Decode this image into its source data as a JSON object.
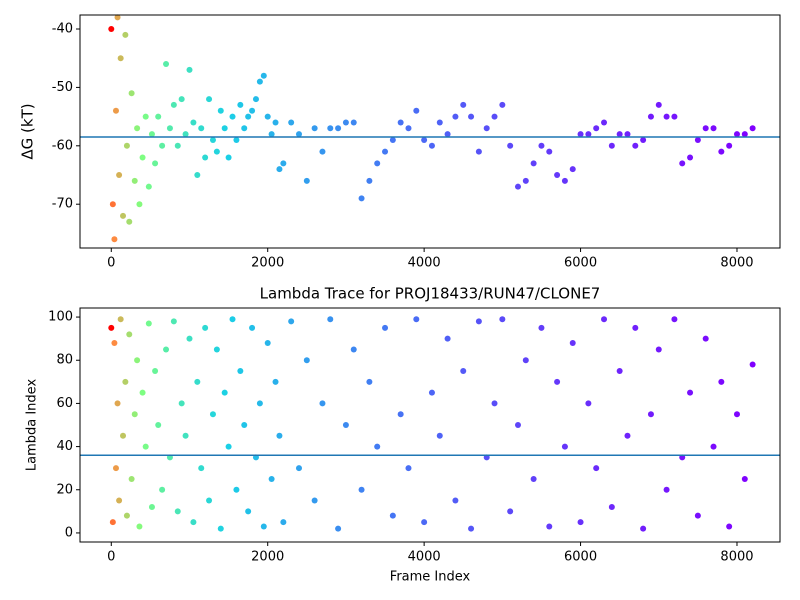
{
  "chart_data": [
    {
      "type": "scatter",
      "ylabel": "ΔG (kT)",
      "x": [
        0,
        20,
        40,
        60,
        80,
        100,
        120,
        150,
        180,
        200,
        230,
        260,
        300,
        330,
        360,
        400,
        440,
        480,
        520,
        560,
        600,
        650,
        700,
        750,
        800,
        850,
        900,
        950,
        1000,
        1050,
        1100,
        1150,
        1200,
        1250,
        1300,
        1350,
        1400,
        1450,
        1500,
        1550,
        1600,
        1650,
        1700,
        1750,
        1800,
        1850,
        1900,
        1950,
        2000,
        2050,
        2100,
        2150,
        2200,
        2300,
        2400,
        2500,
        2600,
        2700,
        2800,
        2900,
        3000,
        3100,
        3200,
        3300,
        3400,
        3500,
        3600,
        3700,
        3800,
        3900,
        4000,
        4100,
        4200,
        4300,
        4400,
        4500,
        4600,
        4700,
        4800,
        4900,
        5000,
        5100,
        5200,
        5300,
        5400,
        5500,
        5600,
        5700,
        5800,
        5900,
        6000,
        6100,
        6200,
        6300,
        6400,
        6500,
        6600,
        6700,
        6800,
        6900,
        7000,
        7100,
        7200,
        7300,
        7400,
        7500,
        7600,
        7700,
        7800,
        7900,
        8000,
        8100,
        8200
      ],
      "values": [
        -40,
        -70,
        -76,
        -54,
        -38,
        -65,
        -45,
        -72,
        -41,
        -60,
        -73,
        -51,
        -66,
        -57,
        -70,
        -62,
        -55,
        -67,
        -58,
        -63,
        -55,
        -60,
        -46,
        -57,
        -53,
        -60,
        -52,
        -58,
        -47,
        -56,
        -65,
        -57,
        -62,
        -52,
        -59,
        -61,
        -54,
        -57,
        -62,
        -55,
        -59,
        -53,
        -57,
        -55,
        -54,
        -52,
        -49,
        -48,
        -55,
        -58,
        -56,
        -64,
        -63,
        -56,
        -58,
        -66,
        -57,
        -61,
        -57,
        -57,
        -56,
        -56,
        -69,
        -66,
        -63,
        -61,
        -59,
        -56,
        -57,
        -54,
        -59,
        -60,
        -56,
        -58,
        -55,
        -53,
        -55,
        -61,
        -57,
        -55,
        -53,
        -60,
        -67,
        -66,
        -63,
        -60,
        -61,
        -65,
        -66,
        -64,
        -58,
        -58,
        -57,
        -56,
        -60,
        -58,
        -58,
        -60,
        -59,
        -55,
        -53,
        -55,
        -55,
        -63,
        -62,
        -59,
        -57,
        -57,
        -61,
        -60,
        -58,
        -58,
        -57
      ],
      "color_stops": [
        "#ff0000",
        "#ff8a40",
        "#80ff80",
        "#1ad0e6",
        "#4a6cf5",
        "#8000ff"
      ],
      "hline": -58.5,
      "hline_color": "#1f77b4",
      "xlim": [
        -400,
        8550
      ],
      "xticks": [
        0,
        2000,
        4000,
        6000,
        8000
      ],
      "ylim": [
        -77.5,
        -37.6
      ],
      "yticks": [
        -70,
        -60,
        -50,
        -40
      ]
    },
    {
      "type": "scatter",
      "title": "Lambda Trace for PROJ18433/RUN47/CLONE7",
      "xlabel": "Frame Index",
      "ylabel": "Lambda Index",
      "x": [
        0,
        20,
        40,
        60,
        80,
        100,
        120,
        150,
        180,
        200,
        230,
        260,
        300,
        330,
        360,
        400,
        440,
        480,
        520,
        560,
        600,
        650,
        700,
        750,
        800,
        850,
        900,
        950,
        1000,
        1050,
        1100,
        1150,
        1200,
        1250,
        1300,
        1350,
        1400,
        1450,
        1500,
        1550,
        1600,
        1650,
        1700,
        1750,
        1800,
        1850,
        1900,
        1950,
        2000,
        2050,
        2100,
        2150,
        2200,
        2300,
        2400,
        2500,
        2600,
        2700,
        2800,
        2900,
        3000,
        3100,
        3200,
        3300,
        3400,
        3500,
        3600,
        3700,
        3800,
        3900,
        4000,
        4100,
        4200,
        4300,
        4400,
        4500,
        4600,
        4700,
        4800,
        4900,
        5000,
        5100,
        5200,
        5300,
        5400,
        5500,
        5600,
        5700,
        5800,
        5900,
        6000,
        6100,
        6200,
        6300,
        6400,
        6500,
        6600,
        6700,
        6800,
        6900,
        7000,
        7100,
        7200,
        7300,
        7400,
        7500,
        7600,
        7700,
        7800,
        7900,
        8000,
        8100,
        8200
      ],
      "values": [
        95,
        5,
        88,
        30,
        60,
        15,
        99,
        45,
        70,
        8,
        92,
        25,
        55,
        80,
        3,
        65,
        40,
        97,
        12,
        75,
        50,
        20,
        85,
        35,
        98,
        10,
        60,
        45,
        90,
        5,
        70,
        30,
        95,
        15,
        55,
        85,
        2,
        65,
        40,
        99,
        20,
        75,
        50,
        10,
        95,
        35,
        60,
        3,
        88,
        25,
        70,
        45,
        5,
        98,
        30,
        80,
        15,
        60,
        99,
        2,
        50,
        85,
        20,
        70,
        40,
        95,
        8,
        55,
        30,
        99,
        5,
        65,
        45,
        90,
        15,
        75,
        2,
        98,
        35,
        60,
        99,
        10,
        50,
        80,
        25,
        95,
        3,
        70,
        40,
        88,
        5,
        60,
        30,
        99,
        12,
        75,
        45,
        95,
        2,
        55,
        85,
        20,
        99,
        35,
        65,
        8,
        90,
        40,
        70,
        3,
        55,
        25,
        78
      ],
      "color_stops": [
        "#ff0000",
        "#ff8a40",
        "#80ff80",
        "#1ad0e6",
        "#4a6cf5",
        "#8000ff"
      ],
      "hline": 36,
      "hline_color": "#1f77b4",
      "xlim": [
        -400,
        8550
      ],
      "xticks": [
        0,
        2000,
        4000,
        6000,
        8000
      ],
      "ylim": [
        -4.2,
        104.2
      ],
      "yticks": [
        0,
        20,
        40,
        60,
        80,
        100
      ]
    }
  ]
}
